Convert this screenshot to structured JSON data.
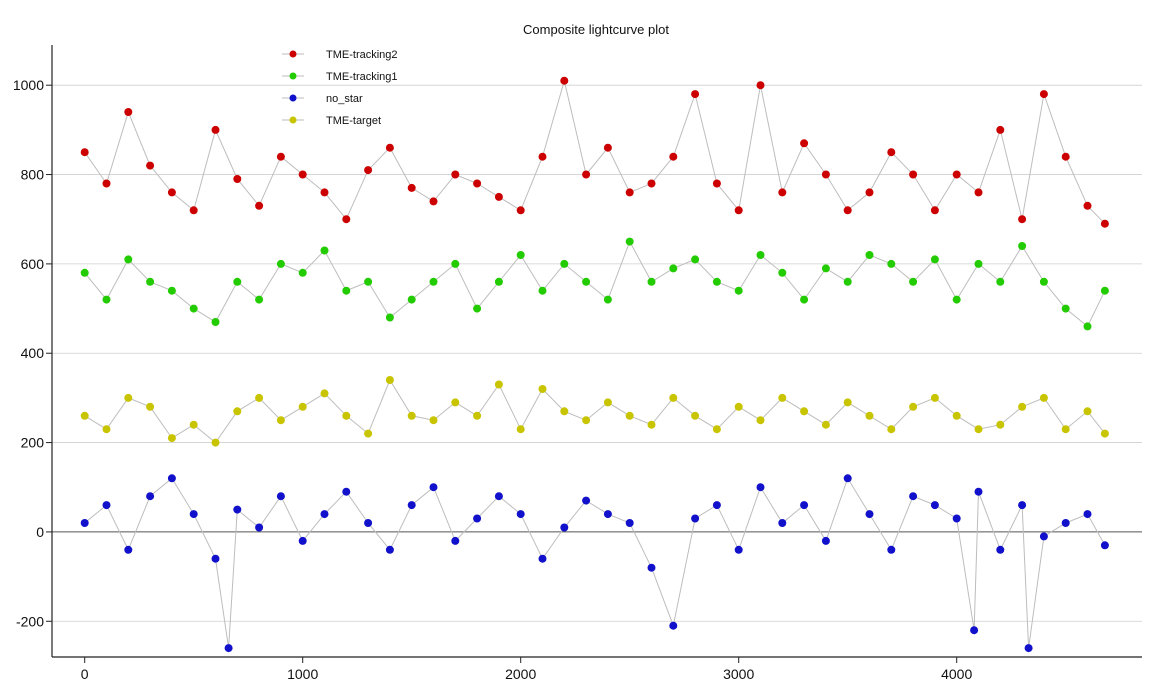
{
  "chart_data": {
    "type": "scatter",
    "title": "Composite lightcurve plot",
    "xlabel": "",
    "ylabel": "",
    "xlim": [
      -150,
      4850
    ],
    "ylim": [
      -280,
      1090
    ],
    "grid": "horizontal",
    "legend_placement": "top-left",
    "x_ticks": [
      0,
      1000,
      2000,
      3000,
      4000
    ],
    "x_tick_labels": [
      "0",
      "1000",
      "2000",
      "3000",
      "4000"
    ],
    "y_ticks": [
      -200,
      0,
      200,
      400,
      600,
      800,
      1000
    ],
    "y_tick_labels": [
      "-200",
      "0",
      "200",
      "400",
      "600",
      "800",
      "1000"
    ],
    "series": [
      {
        "name": "TME-tracking2",
        "color": "#cc0000",
        "x": [
          0,
          100,
          200,
          300,
          400,
          500,
          600,
          700,
          800,
          900,
          1000,
          1100,
          1200,
          1300,
          1400,
          1500,
          1600,
          1700,
          1800,
          1900,
          2000,
          2100,
          2200,
          2300,
          2400,
          2500,
          2600,
          2700,
          2800,
          2900,
          3000,
          3100,
          3200,
          3300,
          3400,
          3500,
          3600,
          3700,
          3800,
          3900,
          4000,
          4100,
          4200,
          4300,
          4400,
          4500,
          4600,
          4680
        ],
        "y": [
          850,
          780,
          940,
          820,
          760,
          720,
          900,
          790,
          730,
          840,
          800,
          760,
          700,
          810,
          860,
          770,
          740,
          800,
          780,
          750,
          720,
          840,
          1010,
          800,
          860,
          760,
          780,
          840,
          980,
          780,
          720,
          1000,
          760,
          870,
          800,
          720,
          760,
          850,
          800,
          720,
          800,
          760,
          900,
          700,
          980,
          840,
          730,
          690
        ]
      },
      {
        "name": "TME-tracking1",
        "color": "#22cc00",
        "x": [
          0,
          100,
          200,
          300,
          400,
          500,
          600,
          700,
          800,
          900,
          1000,
          1100,
          1200,
          1300,
          1400,
          1500,
          1600,
          1700,
          1800,
          1900,
          2000,
          2100,
          2200,
          2300,
          2400,
          2500,
          2600,
          2700,
          2800,
          2900,
          3000,
          3100,
          3200,
          3300,
          3400,
          3500,
          3600,
          3700,
          3800,
          3900,
          4000,
          4100,
          4200,
          4300,
          4400,
          4500,
          4600,
          4680
        ],
        "y": [
          580,
          520,
          610,
          560,
          540,
          500,
          470,
          560,
          520,
          600,
          580,
          630,
          540,
          560,
          480,
          520,
          560,
          600,
          500,
          560,
          620,
          540,
          600,
          560,
          520,
          650,
          560,
          590,
          610,
          560,
          540,
          620,
          580,
          520,
          590,
          560,
          620,
          600,
          560,
          610,
          520,
          600,
          560,
          640,
          560,
          500,
          460,
          540
        ]
      },
      {
        "name": "no_star",
        "color": "#1111cc",
        "x": [
          0,
          100,
          200,
          300,
          400,
          500,
          600,
          660,
          700,
          800,
          900,
          1000,
          1100,
          1200,
          1300,
          1400,
          1500,
          1600,
          1700,
          1800,
          1900,
          2000,
          2100,
          2200,
          2300,
          2400,
          2500,
          2600,
          2700,
          2800,
          2900,
          3000,
          3100,
          3200,
          3300,
          3400,
          3500,
          3600,
          3700,
          3800,
          3900,
          4000,
          4080,
          4100,
          4200,
          4300,
          4330,
          4400,
          4500,
          4600,
          4680
        ],
        "y": [
          20,
          60,
          -40,
          80,
          120,
          40,
          -60,
          -260,
          50,
          10,
          80,
          -20,
          40,
          90,
          20,
          -40,
          60,
          100,
          -20,
          30,
          80,
          40,
          -60,
          10,
          70,
          40,
          20,
          -80,
          -210,
          30,
          60,
          -40,
          100,
          20,
          60,
          -20,
          120,
          40,
          -40,
          80,
          60,
          30,
          -220,
          90,
          -40,
          60,
          -260,
          -10,
          20,
          40,
          -30
        ]
      },
      {
        "name": "TME-target",
        "color": "#c8c400",
        "x": [
          0,
          100,
          200,
          300,
          400,
          500,
          600,
          700,
          800,
          900,
          1000,
          1100,
          1200,
          1300,
          1400,
          1500,
          1600,
          1700,
          1800,
          1900,
          2000,
          2100,
          2200,
          2300,
          2400,
          2500,
          2600,
          2700,
          2800,
          2900,
          3000,
          3100,
          3200,
          3300,
          3400,
          3500,
          3600,
          3700,
          3800,
          3900,
          4000,
          4100,
          4200,
          4300,
          4400,
          4500,
          4600,
          4680
        ],
        "y": [
          260,
          230,
          300,
          280,
          210,
          240,
          200,
          270,
          300,
          250,
          280,
          310,
          260,
          220,
          340,
          260,
          250,
          290,
          260,
          330,
          230,
          320,
          270,
          250,
          290,
          260,
          240,
          300,
          260,
          230,
          280,
          250,
          300,
          270,
          240,
          290,
          260,
          230,
          280,
          300,
          260,
          230,
          240,
          280,
          300,
          230,
          270,
          220
        ]
      }
    ]
  }
}
